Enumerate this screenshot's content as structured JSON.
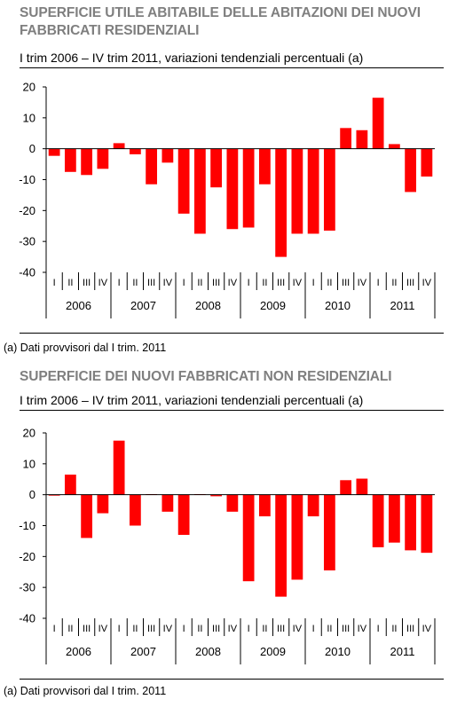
{
  "chart_data": [
    {
      "type": "bar",
      "title": "SUPERFICIE UTILE ABITABILE DELLE ABITAZIONI DEI NUOVI FABBRICATI RESIDENZIALI",
      "subtitle": "I trim 2006 – IV trim 2011, variazioni tendenziali percentuali (a)",
      "note": "(a) Dati provvisori dal I trim. 2011",
      "years": [
        "2006",
        "2007",
        "2008",
        "2009",
        "2010",
        "2011"
      ],
      "quarters": [
        "I",
        "II",
        "III",
        "IV"
      ],
      "values": [
        -2.3,
        -7.5,
        -8.5,
        -6.5,
        1.8,
        -1.8,
        -11.5,
        -4.5,
        -21,
        -27.5,
        -12.5,
        -26,
        -25.5,
        -11.5,
        -35,
        -27.5,
        -27.5,
        -26.5,
        6.7,
        6.0,
        16.5,
        1.5,
        -14,
        -9
      ],
      "ylim": [
        -40,
        20
      ],
      "yticks": [
        20,
        10,
        0,
        -10,
        -20,
        -30,
        -40
      ],
      "color": "#ff0000"
    },
    {
      "type": "bar",
      "title": "SUPERFICIE DEI NUOVI FABBRICATI NON RESIDENZIALI",
      "subtitle": "I trim 2006 – IV trim 2011, variazioni tendenziali percentuali (a)",
      "note": "(a) Dati provvisori dal I trim. 2011",
      "years": [
        "2006",
        "2007",
        "2008",
        "2009",
        "2010",
        "2011"
      ],
      "quarters": [
        "I",
        "II",
        "III",
        "IV"
      ],
      "values": [
        -0.3,
        6.5,
        -14,
        -6,
        17.5,
        -10,
        0.2,
        -5.5,
        -13,
        0.2,
        -0.5,
        -5.5,
        -28,
        -7,
        -33,
        -27.5,
        -7,
        -24.5,
        4.7,
        5.2,
        -17,
        -15.5,
        -18,
        -18.8
      ],
      "ylim": [
        -40,
        20
      ],
      "yticks": [
        20,
        10,
        0,
        -10,
        -20,
        -30,
        -40
      ],
      "color": "#ff0000"
    }
  ]
}
